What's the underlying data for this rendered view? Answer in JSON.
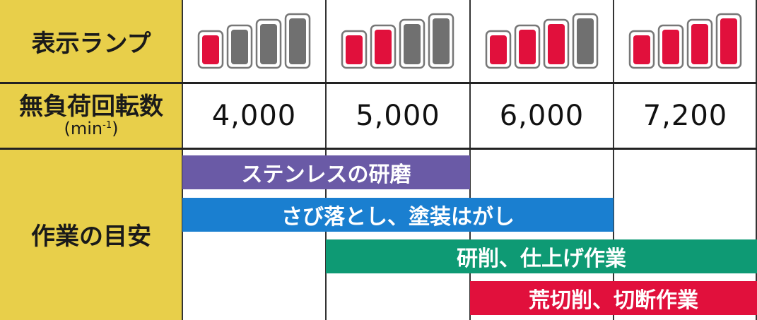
{
  "rows": {
    "lamp_label": "表示ランプ",
    "rpm_label": "無負荷回転数",
    "rpm_unit": "(min",
    "rpm_unit_sup": "-1",
    "rpm_unit_close": ")",
    "work_label": "作業の目安"
  },
  "columns": [
    {
      "lamp_level": 1,
      "rpm": "4,000"
    },
    {
      "lamp_level": 2,
      "rpm": "5,000"
    },
    {
      "lamp_level": 3,
      "rpm": "6,000"
    },
    {
      "lamp_level": 4,
      "rpm": "7,200"
    }
  ],
  "tasks": [
    {
      "label": "ステンレスの研磨",
      "from_col": 1,
      "to_col": 2,
      "color": "#6a5aa6"
    },
    {
      "label": "さび落とし、塗装はがし",
      "from_col": 1,
      "to_col": 3,
      "color": "#1a7fd0"
    },
    {
      "label": "研削、仕上げ作業",
      "from_col": 2,
      "to_col": 4,
      "color": "#0e9a74"
    },
    {
      "label": "荒切削、切断作業",
      "from_col": 3,
      "to_col": 4,
      "color": "#e1103c"
    }
  ],
  "colors": {
    "header_bg": "#e8cf4a",
    "lamp_on": "#e1103c",
    "lamp_off": "#707070"
  }
}
